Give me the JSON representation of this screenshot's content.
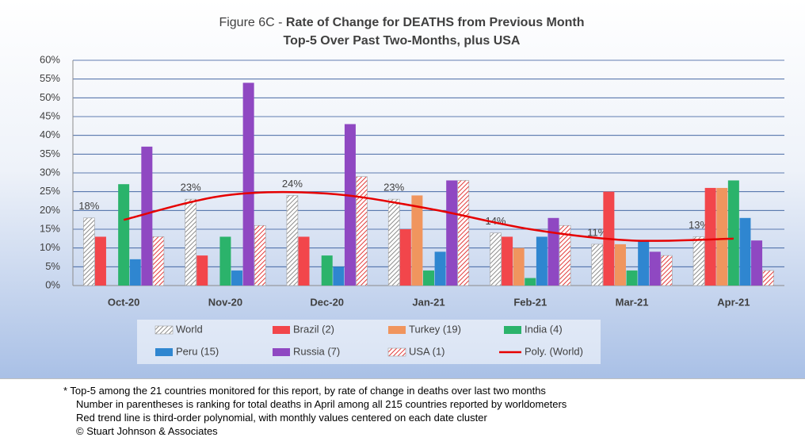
{
  "chart_data": {
    "type": "bar",
    "title_prefix": "Figure 6C - ",
    "title": "Rate of Change for DEATHS from Previous Month",
    "subtitle": "Top-5 Over Past Two-Months, plus USA",
    "categories": [
      "Oct-20",
      "Nov-20",
      "Dec-20",
      "Jan-21",
      "Feb-21",
      "Mar-21",
      "Apr-21"
    ],
    "series": [
      {
        "name": "World",
        "color": "#8c8c8c",
        "pattern": "hatch",
        "values": [
          18,
          23,
          24,
          23,
          14,
          11,
          13
        ],
        "value_labels": [
          "18%",
          "23%",
          "24%",
          "23%",
          "14%",
          "11%",
          "13%"
        ]
      },
      {
        "name": "Brazil (2)",
        "color": "#f2464b",
        "values": [
          13,
          8,
          13,
          15,
          13,
          25,
          26
        ]
      },
      {
        "name": "Turkey (19)",
        "color": "#f0955e",
        "values": [
          null,
          null,
          null,
          24,
          10,
          11,
          26
        ]
      },
      {
        "name": "India (4)",
        "color": "#2bb36b",
        "values": [
          27,
          13,
          8,
          4,
          2,
          4,
          28
        ]
      },
      {
        "name": "Peru (15)",
        "color": "#2f86d0",
        "values": [
          7,
          4,
          5,
          9,
          13,
          12,
          18
        ]
      },
      {
        "name": "Russia (7)",
        "color": "#8f48c2",
        "values": [
          37,
          54,
          43,
          28,
          18,
          9,
          12
        ]
      },
      {
        "name": "USA (1)",
        "color": "#e23a3a",
        "pattern": "hatch",
        "values": [
          13,
          16,
          29,
          28,
          16,
          8,
          4
        ]
      },
      {
        "name": "Poly. (World)",
        "color": "#e60000",
        "type": "line",
        "values": [
          17.5,
          24,
          24.5,
          20.5,
          15,
          12,
          12.5
        ]
      }
    ],
    "ylim": [
      0,
      60
    ],
    "yticks": [
      {
        "value": 0,
        "label": "0%"
      },
      {
        "value": 5,
        "label": "5%"
      },
      {
        "value": 10,
        "label": "10%"
      },
      {
        "value": 15,
        "label": "15%"
      },
      {
        "value": 20,
        "label": "20%"
      },
      {
        "value": 25,
        "label": "25%"
      },
      {
        "value": 30,
        "label": "30%"
      },
      {
        "value": 35,
        "label": "35%"
      },
      {
        "value": 40,
        "label": "40%"
      },
      {
        "value": 45,
        "label": "45%"
      },
      {
        "value": 50,
        "label": "50%"
      },
      {
        "value": 55,
        "label": "55%"
      },
      {
        "value": 60,
        "label": "60%"
      }
    ],
    "grid": true,
    "legend": "bottom"
  },
  "notes": [
    "* Top-5 among the 21 countries monitored for this report, by rate of change in deaths over last two months",
    "Number in parentheses is ranking for total deaths in April among all 215 countries reported by worldometers",
    "Red trend line is third-order polynomial, with monthly values centered on each date cluster",
    "© Stuart Johnson & Associates"
  ]
}
